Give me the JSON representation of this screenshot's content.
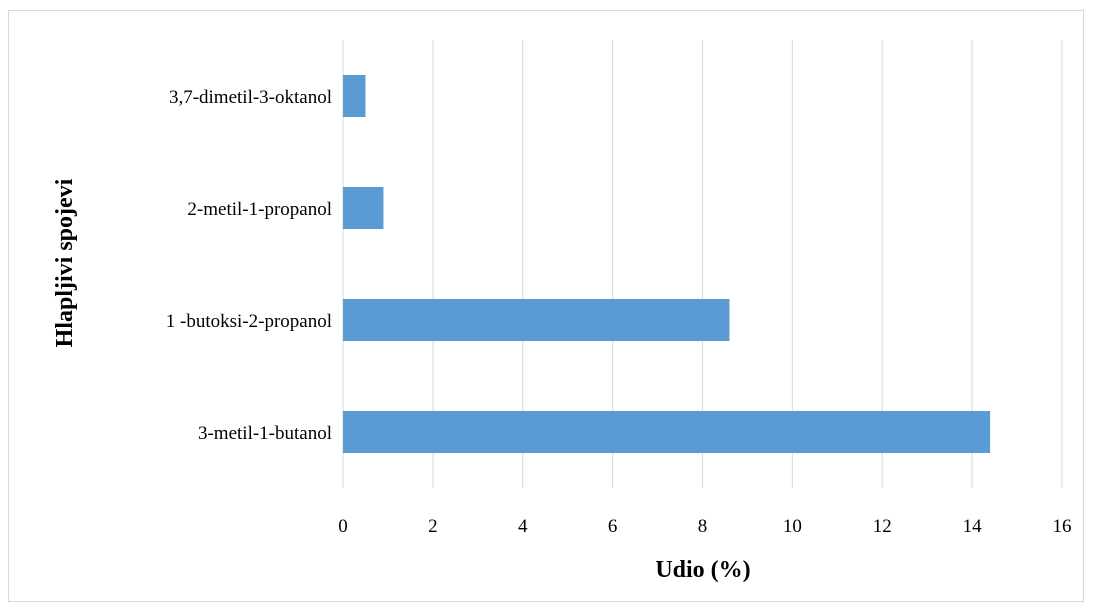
{
  "chart_data": {
    "type": "bar",
    "orientation": "horizontal",
    "categories": [
      "3-metil-1-butanol",
      "1 -butoksi-2-propanol",
      "2-metil-1-propanol",
      "3,7-dimetil-3-oktanol"
    ],
    "values": [
      14.4,
      8.6,
      0.9,
      0.5
    ],
    "title": "",
    "xlabel": "Udio (%)",
    "ylabel": "Hlapljivi spojevi",
    "xlim": [
      0,
      16
    ],
    "xticks": [
      "0",
      "2",
      "4",
      "6",
      "8",
      "10",
      "12",
      "14",
      "16"
    ],
    "grid": "vertical",
    "legend": "none",
    "bar_color": "#5B9BD5",
    "grid_color": "#d9d9d9"
  }
}
